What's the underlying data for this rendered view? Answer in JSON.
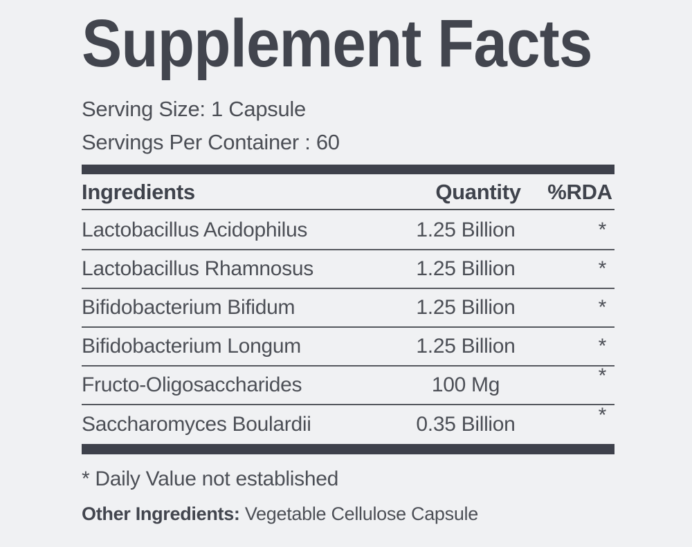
{
  "colors": {
    "background": "#f0f1f3",
    "bar": "#3e414b",
    "title_text": "#42454e",
    "body_text": "#4c4f56",
    "separator": "#54575d"
  },
  "title": "Supplement Facts",
  "serving": {
    "size": "Serving Size: 1 Capsule",
    "per_container": "Servings Per Container : 60"
  },
  "table": {
    "headers": {
      "ingredient": "Ingredients",
      "quantity": "Quantity",
      "rda": "%RDA"
    },
    "rows": [
      {
        "ingredient": "Lactobacillus Acidophilus",
        "quantity": "1.25 Billion",
        "rda": "*"
      },
      {
        "ingredient": "Lactobacillus Rhamnosus",
        "quantity": "1.25 Billion",
        "rda": "*"
      },
      {
        "ingredient": "Bifidobacterium Bifidum",
        "quantity": "1.25 Billion",
        "rda": "*"
      },
      {
        "ingredient": "Bifidobacterium Longum",
        "quantity": "1.25 Billion",
        "rda": "*"
      },
      {
        "ingredient": "Fructo-Oligosaccharides",
        "quantity": "100 Mg",
        "rda": "*"
      },
      {
        "ingredient": "Saccharomyces Boulardii",
        "quantity": "0.35 Billion",
        "rda": "*"
      }
    ]
  },
  "footnotes": {
    "daily_value": "* Daily Value not established",
    "other_ingredients_label": "Other Ingredients:",
    "other_ingredients_value": " Vegetable Cellulose Capsule"
  }
}
